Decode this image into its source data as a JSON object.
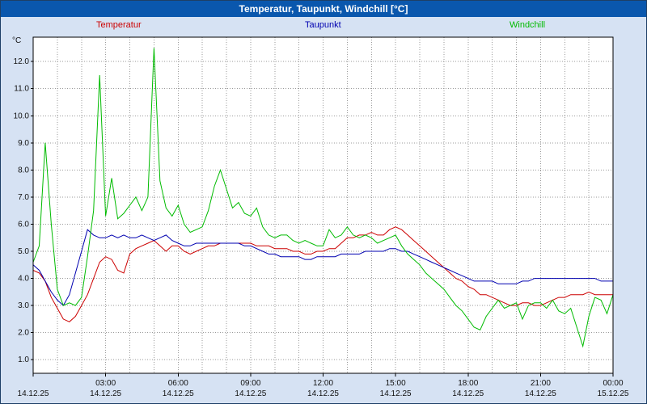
{
  "chart_data": {
    "type": "line",
    "title": "Temperatur, Taupunkt, Windchill [°C]",
    "ylabel": "°C",
    "xlabel": "",
    "xlim": [
      0,
      24
    ],
    "ylim": [
      0.5,
      12.9
    ],
    "x_step_hours": 0.25,
    "grid": {
      "horizontal_step": 1,
      "vertical_step_hours": 1,
      "style": "dotted"
    },
    "legend_position": "top",
    "y_ticks": [
      {
        "value": 1,
        "label": "1.0"
      },
      {
        "value": 2,
        "label": "2.0"
      },
      {
        "value": 3,
        "label": "3.0"
      },
      {
        "value": 4,
        "label": "4.0"
      },
      {
        "value": 5,
        "label": "5.0"
      },
      {
        "value": 6,
        "label": "6.0"
      },
      {
        "value": 7,
        "label": "7.0"
      },
      {
        "value": 8,
        "label": "8.0"
      },
      {
        "value": 9,
        "label": "9.0"
      },
      {
        "value": 10,
        "label": "10.0"
      },
      {
        "value": 11,
        "label": "11.0"
      },
      {
        "value": 12,
        "label": "12.0"
      }
    ],
    "x_ticks": [
      {
        "hour": 0,
        "time": "",
        "date": "14.12.25"
      },
      {
        "hour": 3,
        "time": "03:00",
        "date": "14.12.25"
      },
      {
        "hour": 6,
        "time": "06:00",
        "date": "14.12.25"
      },
      {
        "hour": 9,
        "time": "09:00",
        "date": "14.12.25"
      },
      {
        "hour": 12,
        "time": "12:00",
        "date": "14.12.25"
      },
      {
        "hour": 15,
        "time": "15:00",
        "date": "14.12.25"
      },
      {
        "hour": 18,
        "time": "18:00",
        "date": "14.12.25"
      },
      {
        "hour": 21,
        "time": "21:00",
        "date": "14.12.25"
      },
      {
        "hour": 24,
        "time": "00:00",
        "date": "15.12.25"
      }
    ],
    "series": [
      {
        "name": "Temperatur",
        "color": "#cc0000",
        "values": [
          4.3,
          4.2,
          3.9,
          3.3,
          2.9,
          2.5,
          2.4,
          2.6,
          3.0,
          3.4,
          4.0,
          4.6,
          4.8,
          4.7,
          4.3,
          4.2,
          4.9,
          5.1,
          5.2,
          5.3,
          5.4,
          5.2,
          5.0,
          5.2,
          5.2,
          5.0,
          4.9,
          5.0,
          5.1,
          5.2,
          5.2,
          5.3,
          5.3,
          5.3,
          5.3,
          5.3,
          5.3,
          5.2,
          5.2,
          5.2,
          5.1,
          5.1,
          5.1,
          5.0,
          5.0,
          4.9,
          4.9,
          5.0,
          5.0,
          5.1,
          5.1,
          5.3,
          5.5,
          5.5,
          5.6,
          5.6,
          5.7,
          5.6,
          5.6,
          5.8,
          5.9,
          5.8,
          5.6,
          5.4,
          5.2,
          5.0,
          4.8,
          4.6,
          4.4,
          4.2,
          4.0,
          3.9,
          3.7,
          3.6,
          3.4,
          3.4,
          3.3,
          3.2,
          3.1,
          3.0,
          3.0,
          3.1,
          3.1,
          3.0,
          3.0,
          3.1,
          3.2,
          3.3,
          3.3,
          3.4,
          3.4,
          3.4,
          3.5,
          3.4,
          3.4,
          3.4,
          3.4
        ]
      },
      {
        "name": "Taupunkt",
        "color": "#0000b0",
        "values": [
          4.5,
          4.3,
          3.9,
          3.5,
          3.2,
          3.0,
          3.4,
          4.2,
          5.0,
          5.8,
          5.6,
          5.5,
          5.5,
          5.6,
          5.5,
          5.6,
          5.5,
          5.5,
          5.6,
          5.5,
          5.4,
          5.5,
          5.6,
          5.4,
          5.3,
          5.2,
          5.2,
          5.3,
          5.3,
          5.3,
          5.3,
          5.3,
          5.3,
          5.3,
          5.3,
          5.2,
          5.2,
          5.1,
          5.0,
          4.9,
          4.9,
          4.8,
          4.8,
          4.8,
          4.8,
          4.7,
          4.7,
          4.8,
          4.8,
          4.8,
          4.8,
          4.9,
          4.9,
          4.9,
          4.9,
          5.0,
          5.0,
          5.0,
          5.0,
          5.1,
          5.1,
          5.0,
          5.0,
          4.9,
          4.8,
          4.7,
          4.6,
          4.5,
          4.4,
          4.3,
          4.2,
          4.1,
          4.0,
          3.9,
          3.9,
          3.9,
          3.9,
          3.8,
          3.8,
          3.8,
          3.8,
          3.9,
          3.9,
          4.0,
          4.0,
          4.0,
          4.0,
          4.0,
          4.0,
          4.0,
          4.0,
          4.0,
          4.0,
          4.0,
          3.9,
          3.9,
          3.9
        ]
      },
      {
        "name": "Windchill",
        "color": "#00bb00",
        "values": [
          4.6,
          5.2,
          9.0,
          6.0,
          3.6,
          3.0,
          3.1,
          3.0,
          3.3,
          4.8,
          6.5,
          11.5,
          6.3,
          7.7,
          6.2,
          6.4,
          6.7,
          7.0,
          6.5,
          7.0,
          12.5,
          7.6,
          6.6,
          6.3,
          6.7,
          6.0,
          5.7,
          5.8,
          5.9,
          6.5,
          7.4,
          8.0,
          7.3,
          6.6,
          6.8,
          6.4,
          6.3,
          6.6,
          5.9,
          5.6,
          5.5,
          5.6,
          5.6,
          5.4,
          5.3,
          5.4,
          5.3,
          5.2,
          5.2,
          5.8,
          5.5,
          5.6,
          5.9,
          5.6,
          5.5,
          5.6,
          5.5,
          5.3,
          5.4,
          5.5,
          5.6,
          5.2,
          4.9,
          4.7,
          4.5,
          4.2,
          4.0,
          3.8,
          3.6,
          3.3,
          3.0,
          2.8,
          2.5,
          2.2,
          2.1,
          2.6,
          2.9,
          3.2,
          2.9,
          3.0,
          3.1,
          2.5,
          3.0,
          3.1,
          3.1,
          2.9,
          3.2,
          2.8,
          2.7,
          2.9,
          2.2,
          1.5,
          2.6,
          3.3,
          3.2,
          2.7,
          3.4
        ]
      }
    ]
  }
}
